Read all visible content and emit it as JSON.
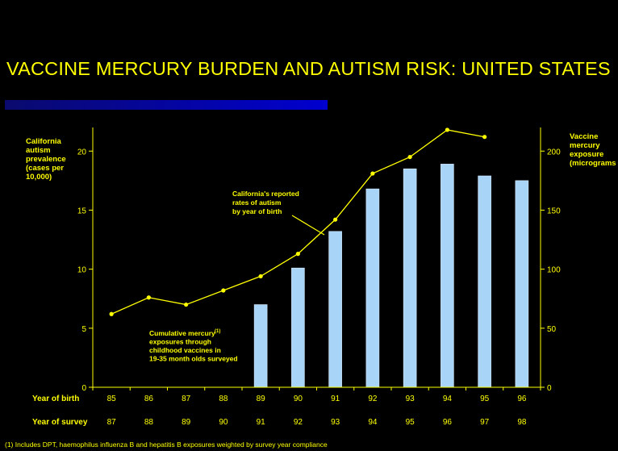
{
  "slide": {
    "title": "VACCINE MERCURY BURDEN AND AUTISM RISK:  UNITED STATES",
    "footnote": "(1)  Includes DPT, haemophilus influenza B and hepatitis B exposures weighted by survey year compliance"
  },
  "colors": {
    "background": "#000000",
    "text": "#ffff00",
    "bars": "#a8d4f8",
    "line": "#ffff00",
    "title_bar": "#0000c8"
  },
  "chart_data": {
    "type": "bar",
    "categories": [
      "85",
      "86",
      "87",
      "88",
      "89",
      "90",
      "91",
      "92",
      "93",
      "94",
      "95",
      "96"
    ],
    "survey_years": [
      "87",
      "88",
      "89",
      "90",
      "91",
      "92",
      "93",
      "94",
      "95",
      "96",
      "97",
      "98"
    ],
    "row_labels": {
      "year_of_birth": "Year of birth",
      "year_of_survey": "Year of survey"
    },
    "left_axis": {
      "label": "California autism prevalence (cases per 10,000)",
      "label_lines": [
        "California",
        "autism",
        "prevalence",
        "(cases per",
        "10,000)"
      ],
      "ylim": [
        0,
        22
      ],
      "ticks": [
        0,
        5,
        10,
        15,
        20
      ]
    },
    "right_axis": {
      "label": "Vaccine mercury exposure (micrograms)",
      "label_lines": [
        "Vaccine",
        "mercury",
        "exposure",
        "(micrograms"
      ],
      "ylim": [
        0,
        220
      ],
      "ticks": [
        0,
        50,
        100,
        150,
        200
      ]
    },
    "series": [
      {
        "kind": "bar",
        "axis": "right",
        "values": [
          null,
          null,
          null,
          null,
          70,
          101,
          132,
          168,
          185,
          189,
          179,
          175
        ]
      },
      {
        "kind": "line",
        "axis": "left",
        "values": [
          6.2,
          7.6,
          7.0,
          8.2,
          9.4,
          11.3,
          14.2,
          18.1,
          19.5,
          21.8,
          21.2,
          null
        ]
      }
    ],
    "annotations": [
      {
        "series": 1,
        "lines": [
          "California's reported",
          "rates of autism",
          "by year of birth"
        ]
      },
      {
        "series": 0,
        "lines": [
          "Cumulative mercury",
          "exposures through",
          "childhood vaccines in",
          "19-35 month olds surveyed"
        ],
        "superscript": "(1)"
      }
    ],
    "grid": false,
    "legend": "none"
  }
}
